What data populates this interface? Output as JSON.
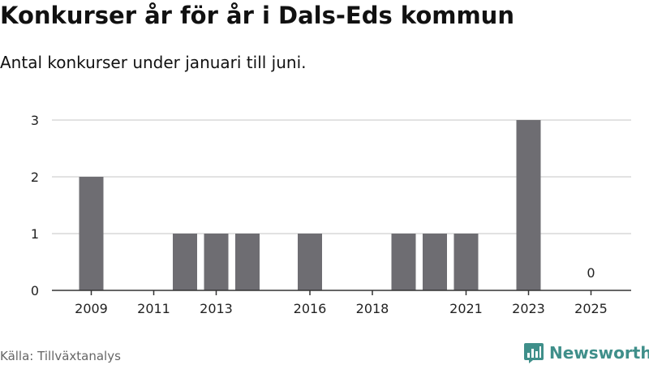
{
  "title": "Konkurser år för år i Dals-Eds kommun",
  "subtitle": "Antal konkurser under januari till juni.",
  "source": "Källa: Tillväxtanalys",
  "brand": {
    "name": "Newsworthy"
  },
  "colors": {
    "bar": "#6e6d72",
    "grid": "#d9d9d9",
    "axis": "#333333",
    "brand": "#3f8f8a"
  },
  "chart_data": {
    "type": "bar",
    "categories": [
      "2009",
      "2010",
      "2011",
      "2012",
      "2013",
      "2014",
      "2015",
      "2016",
      "2017",
      "2018",
      "2019",
      "2020",
      "2021",
      "2022",
      "2023",
      "2024",
      "2025"
    ],
    "values": [
      2,
      0,
      0,
      1,
      1,
      1,
      0,
      1,
      0,
      0,
      1,
      1,
      1,
      0,
      3,
      0,
      0
    ],
    "x_tick_labels": [
      "2009",
      "2011",
      "2013",
      "2016",
      "2018",
      "2021",
      "2023",
      "2025"
    ],
    "y_ticks": [
      0,
      1,
      2,
      3
    ],
    "ylim": [
      0,
      3
    ],
    "annotations": [
      {
        "category": "2025",
        "text": "0"
      }
    ],
    "grid": true,
    "legend": "none",
    "xlabel": "",
    "ylabel": ""
  }
}
